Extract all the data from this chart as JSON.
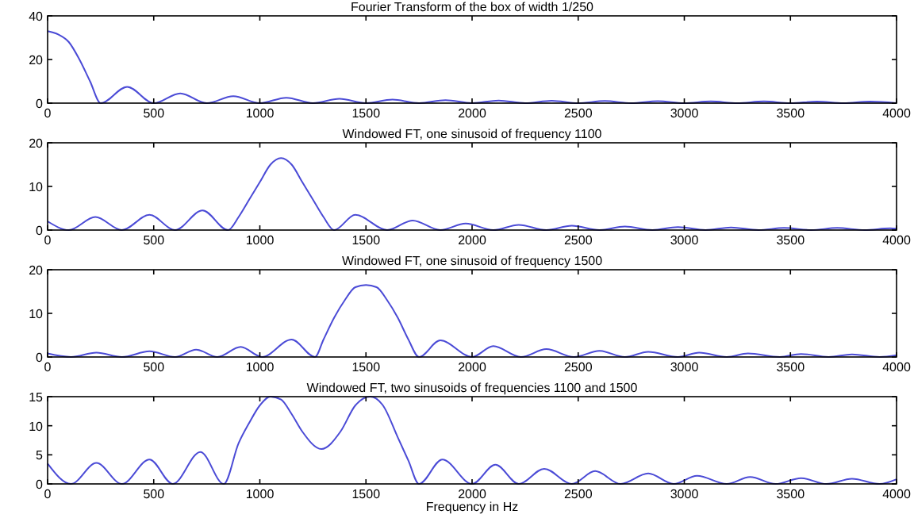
{
  "chart_data": [
    {
      "type": "line",
      "title": "Fourier Transform of the box of width 1/250",
      "xlim": [
        0,
        4000
      ],
      "xticks": [
        0,
        500,
        1000,
        1500,
        2000,
        2500,
        3000,
        3500,
        4000
      ],
      "ylim": [
        0,
        40
      ],
      "yticks": [
        0,
        20,
        40
      ],
      "series": [
        {
          "color": "#4b4bd6",
          "x": [
            0,
            50,
            100,
            150,
            200,
            250,
            375,
            500,
            625,
            750,
            875,
            1000,
            1125,
            1250,
            1375,
            1500,
            1625,
            1750,
            1875,
            2000,
            2125,
            2250,
            2375,
            2500,
            2625,
            2750,
            2875,
            3000,
            3125,
            3250,
            3375,
            3500,
            3625,
            3750,
            3875,
            4000
          ],
          "values": [
            33,
            31.5,
            28,
            20,
            10,
            0,
            7.5,
            0,
            4.5,
            0,
            3.2,
            0,
            2.5,
            0,
            2,
            0,
            1.6,
            0,
            1.4,
            0,
            1.2,
            0,
            1.1,
            0,
            1,
            0,
            0.9,
            0,
            0.8,
            0,
            0.8,
            0,
            0.7,
            0,
            0.7,
            0
          ]
        }
      ]
    },
    {
      "type": "line",
      "title": "Windowed FT, one sinusoid of frequency 1100",
      "xlim": [
        0,
        4000
      ],
      "xticks": [
        0,
        500,
        1000,
        1500,
        2000,
        2500,
        3000,
        3500,
        4000
      ],
      "ylim": [
        0,
        20
      ],
      "yticks": [
        0,
        10,
        20
      ],
      "series": [
        {
          "color": "#4b4bd6",
          "x": [
            0,
            100,
            225,
            350,
            480,
            600,
            730,
            850,
            900,
            950,
            1000,
            1050,
            1100,
            1150,
            1200,
            1250,
            1300,
            1350,
            1450,
            1600,
            1720,
            1850,
            1970,
            2100,
            2220,
            2350,
            2470,
            2600,
            2720,
            2850,
            2970,
            3100,
            3220,
            3350,
            3470,
            3600,
            3720,
            3850,
            3970,
            4000
          ],
          "values": [
            2,
            0,
            3,
            0,
            3.5,
            0,
            4.5,
            0,
            3,
            7,
            11,
            15,
            16.5,
            15,
            11,
            7,
            3,
            0,
            3.5,
            0,
            2.2,
            0,
            1.5,
            0,
            1.2,
            0,
            1,
            0,
            0.8,
            0,
            0.7,
            0,
            0.6,
            0,
            0.5,
            0,
            0.5,
            0,
            0.4,
            0.3
          ]
        }
      ]
    },
    {
      "type": "line",
      "title": "Windowed FT, one sinusoid of frequency 1500",
      "xlim": [
        0,
        4000
      ],
      "xticks": [
        0,
        500,
        1000,
        1500,
        2000,
        2500,
        3000,
        3500,
        4000
      ],
      "ylim": [
        0,
        20
      ],
      "yticks": [
        0,
        10,
        20
      ],
      "series": [
        {
          "color": "#4b4bd6",
          "x": [
            0,
            110,
            230,
            350,
            480,
            600,
            700,
            800,
            910,
            1010,
            1150,
            1260,
            1300,
            1350,
            1400,
            1450,
            1500,
            1550,
            1600,
            1650,
            1700,
            1750,
            1850,
            2000,
            2100,
            2230,
            2350,
            2480,
            2600,
            2720,
            2830,
            2970,
            3070,
            3200,
            3300,
            3450,
            3550,
            3680,
            3790,
            3920,
            4000
          ],
          "values": [
            0.8,
            0,
            1,
            0,
            1.3,
            0,
            1.7,
            0,
            2.3,
            0,
            4,
            0,
            4,
            9,
            13,
            16,
            16.5,
            16,
            13,
            9,
            4,
            0,
            3.8,
            0,
            2.5,
            0,
            1.8,
            0,
            1.4,
            0,
            1.2,
            0,
            1,
            0,
            0.8,
            0,
            0.7,
            0,
            0.6,
            0,
            0.4
          ]
        }
      ]
    },
    {
      "type": "line",
      "title": "Windowed FT, two sinusoids of frequencies 1100 and 1500",
      "xlabel": "Frequency in Hz",
      "xlim": [
        0,
        4000
      ],
      "xticks": [
        0,
        500,
        1000,
        1500,
        2000,
        2500,
        3000,
        3500,
        4000
      ],
      "ylim": [
        0,
        15
      ],
      "yticks": [
        0,
        5,
        10,
        15
      ],
      "series": [
        {
          "color": "#4b4bd6",
          "x": [
            0,
            110,
            230,
            350,
            480,
            590,
            720,
            830,
            900,
            950,
            1000,
            1050,
            1100,
            1150,
            1200,
            1290,
            1380,
            1450,
            1520,
            1580,
            1650,
            1700,
            1750,
            1860,
            2000,
            2110,
            2220,
            2340,
            2470,
            2580,
            2700,
            2830,
            2950,
            3060,
            3200,
            3310,
            3430,
            3550,
            3670,
            3790,
            3920,
            4000
          ],
          "values": [
            3.5,
            0,
            3.6,
            0,
            4.2,
            0,
            5.5,
            0,
            7,
            10.5,
            13.5,
            15,
            14.5,
            12,
            9,
            6,
            9,
            13.5,
            15,
            13.5,
            8,
            4,
            0,
            4.2,
            0,
            3.3,
            0,
            2.6,
            0,
            2.2,
            0,
            1.8,
            0,
            1.4,
            0,
            1.2,
            0,
            1,
            0,
            0.9,
            0,
            0.8
          ]
        }
      ]
    }
  ]
}
